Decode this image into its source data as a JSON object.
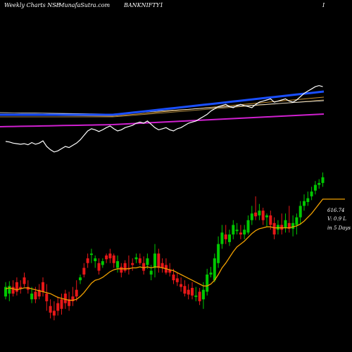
{
  "header": {
    "left": "Weekly Charts NSE",
    "middle": "- MunafaSutra.com",
    "symbol": "BANKNIFTY1",
    "right": "I"
  },
  "side_labels": {
    "price": "616.74",
    "volume": "V: 0.9  L",
    "days": "in 5 Days"
  },
  "colors": {
    "background": "#000000",
    "up_candle": "#00c800",
    "down_candle": "#e81818",
    "ema": "#f0a000",
    "rsi": "#ffffff",
    "ma_fast": "#1a4fff",
    "ma_slow": "#d020d0",
    "ma_mid": "#c89030"
  },
  "chart_data": {
    "type": "candlestick",
    "ohlc": [
      [
        0,
        375,
        385,
        390,
        372
      ],
      [
        1,
        378,
        386,
        391,
        370
      ],
      [
        2,
        385,
        378,
        392,
        375
      ],
      [
        3,
        390,
        380,
        395,
        376
      ],
      [
        4,
        385,
        383,
        392,
        378
      ],
      [
        5,
        395,
        388,
        400,
        385
      ],
      [
        6,
        385,
        382,
        392,
        378
      ],
      [
        7,
        372,
        378,
        385,
        368
      ],
      [
        8,
        380,
        372,
        385,
        368
      ],
      [
        9,
        382,
        375,
        388,
        372
      ],
      [
        10,
        390,
        380,
        395,
        375
      ],
      [
        11,
        378,
        370,
        388,
        360
      ],
      [
        12,
        365,
        358,
        372,
        352
      ],
      [
        13,
        360,
        355,
        370,
        350
      ],
      [
        14,
        368,
        360,
        375,
        355
      ],
      [
        15,
        372,
        362,
        378,
        356
      ],
      [
        16,
        378,
        368,
        382,
        362
      ],
      [
        17,
        372,
        365,
        380,
        360
      ],
      [
        18,
        375,
        370,
        385,
        365
      ],
      [
        19,
        382,
        375,
        392,
        370
      ],
      [
        20,
        392,
        395,
        398,
        388
      ],
      [
        21,
        405,
        398,
        410,
        395
      ],
      [
        22,
        415,
        410,
        420,
        405
      ],
      [
        23,
        420,
        420,
        425,
        410
      ],
      [
        24,
        412,
        415,
        418,
        405
      ],
      [
        25,
        410,
        402,
        415,
        398
      ],
      [
        26,
        408,
        412,
        415,
        405
      ],
      [
        27,
        418,
        414,
        420,
        410
      ],
      [
        28,
        420,
        415,
        425,
        410
      ],
      [
        29,
        418,
        410,
        420,
        405
      ],
      [
        30,
        405,
        412,
        418,
        400
      ],
      [
        31,
        406,
        400,
        410,
        395
      ],
      [
        32,
        410,
        402,
        413,
        400
      ],
      [
        33,
        405,
        404,
        418,
        398
      ],
      [
        34,
        410,
        408,
        415,
        402
      ],
      [
        35,
        414,
        416,
        420,
        410
      ],
      [
        36,
        415,
        410,
        420,
        408
      ],
      [
        37,
        410,
        402,
        417,
        398
      ],
      [
        38,
        408,
        415,
        420,
        404
      ],
      [
        39,
        398,
        402,
        408,
        392
      ],
      [
        40,
        405,
        420,
        430,
        395
      ],
      [
        41,
        420,
        405,
        425,
        400
      ],
      [
        42,
        410,
        405,
        415,
        400
      ],
      [
        43,
        408,
        400,
        415,
        398
      ],
      [
        44,
        403,
        400,
        410,
        396
      ],
      [
        45,
        398,
        392,
        404,
        388
      ],
      [
        46,
        394,
        390,
        400,
        386
      ],
      [
        47,
        388,
        385,
        395,
        380
      ],
      [
        48,
        386,
        378,
        392,
        375
      ],
      [
        49,
        382,
        377,
        388,
        372
      ],
      [
        50,
        384,
        376,
        390,
        372
      ],
      [
        51,
        376,
        376,
        385,
        370
      ],
      [
        52,
        380,
        370,
        384,
        366
      ],
      [
        53,
        372,
        382,
        390,
        362
      ],
      [
        54,
        380,
        398,
        404,
        376
      ],
      [
        55,
        398,
        400,
        406,
        395
      ],
      [
        56,
        392,
        415,
        420,
        390
      ],
      [
        57,
        410,
        430,
        438,
        405
      ],
      [
        58,
        430,
        442,
        450,
        425
      ],
      [
        59,
        440,
        435,
        450,
        430
      ],
      [
        60,
        432,
        440,
        445,
        428
      ],
      [
        61,
        440,
        450,
        455,
        435
      ],
      [
        62,
        445,
        445,
        452,
        440
      ],
      [
        63,
        442,
        440,
        450,
        435
      ],
      [
        64,
        440,
        445,
        450,
        435
      ],
      [
        65,
        442,
        455,
        460,
        440
      ],
      [
        66,
        455,
        462,
        470,
        450
      ],
      [
        67,
        463,
        459,
        480,
        455
      ],
      [
        68,
        460,
        465,
        472,
        455
      ],
      [
        69,
        465,
        455,
        468,
        450
      ],
      [
        70,
        458,
        460,
        462,
        448
      ],
      [
        71,
        460,
        450,
        465,
        445
      ],
      [
        72,
        452,
        440,
        458,
        435
      ],
      [
        73,
        445,
        450,
        455,
        440
      ],
      [
        74,
        450,
        445,
        462,
        440
      ],
      [
        75,
        447,
        455,
        462,
        442
      ],
      [
        76,
        452,
        446,
        470,
        442
      ],
      [
        77,
        446,
        452,
        460,
        438
      ],
      [
        78,
        450,
        458,
        462,
        440
      ],
      [
        79,
        458,
        470,
        475,
        450
      ],
      [
        80,
        470,
        475,
        482,
        465
      ],
      [
        81,
        474,
        478,
        485,
        470
      ],
      [
        82,
        480,
        485,
        490,
        476
      ],
      [
        83,
        486,
        492,
        496,
        482
      ],
      [
        84,
        492,
        494,
        498,
        488
      ],
      [
        85,
        494,
        500,
        505,
        490
      ]
    ],
    "ema": [
      383,
      384,
      383,
      382,
      383,
      384,
      384,
      383,
      382,
      381,
      380,
      379,
      378,
      376,
      374,
      373,
      372,
      371,
      371,
      372,
      375,
      379,
      384,
      389,
      392,
      393,
      395,
      398,
      401,
      403,
      404,
      404,
      404,
      404,
      405,
      405,
      406,
      405,
      406,
      405,
      406,
      406,
      405,
      404,
      403,
      402,
      400,
      398,
      396,
      394,
      392,
      390,
      388,
      386,
      386,
      388,
      392,
      398,
      405,
      410,
      416,
      422,
      427,
      430,
      433,
      437,
      441,
      444,
      446,
      447,
      448,
      448,
      447,
      447,
      447,
      447,
      447,
      448,
      449,
      451,
      454,
      458,
      462,
      467,
      472,
      477
    ],
    "rsi": [
      37,
      36,
      34,
      33,
      32,
      33,
      31,
      35,
      32,
      34,
      38,
      28,
      22,
      18,
      20,
      24,
      28,
      26,
      30,
      34,
      40,
      48,
      56,
      60,
      58,
      55,
      58,
      62,
      65,
      60,
      56,
      58,
      62,
      64,
      66,
      70,
      72,
      70,
      74,
      68,
      62,
      58,
      60,
      62,
      58,
      56,
      60,
      62,
      66,
      70,
      72,
      74,
      78,
      82,
      86,
      92,
      96,
      100,
      102,
      104,
      100,
      98,
      102,
      104,
      102,
      100,
      98,
      104,
      108,
      110,
      112,
      114,
      108,
      110,
      112,
      114,
      110,
      108,
      112,
      118,
      124,
      128,
      132,
      136,
      138,
      136
    ]
  }
}
